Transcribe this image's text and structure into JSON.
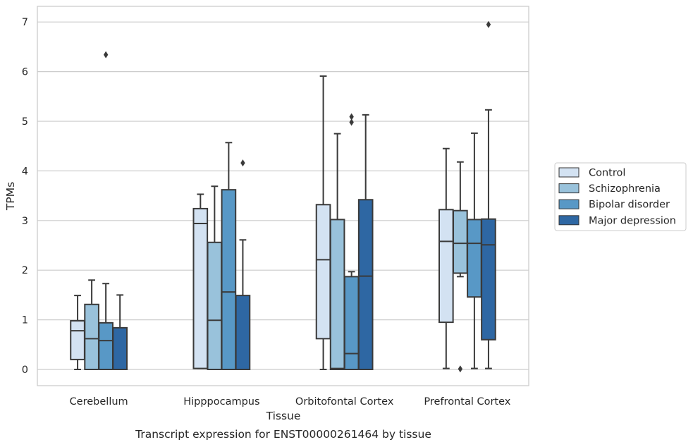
{
  "chart_data": {
    "type": "box",
    "caption": "Transcript expression for ENST00000261464 by tissue",
    "xlabel": "Tissue",
    "ylabel": "TPMs",
    "ylim": [
      -0.33,
      7.3
    ],
    "yticks": [
      0,
      1,
      2,
      3,
      4,
      5,
      6,
      7
    ],
    "grid": "horizontal",
    "legend_position": "right",
    "categories": [
      "Cerebellum",
      "Hipppocampus",
      "Orbitofontal Cortex",
      "Prefrontal Cortex"
    ],
    "series": [
      {
        "name": "Control",
        "color": "#d3e2f2",
        "boxes": [
          {
            "whisker_low": 0.0,
            "q1": 0.2,
            "median": 0.78,
            "q3": 0.98,
            "whisker_high": 1.49,
            "outliers": []
          },
          {
            "whisker_low": 0.02,
            "q1": 0.02,
            "median": 2.94,
            "q3": 3.24,
            "whisker_high": 3.53,
            "outliers": []
          },
          {
            "whisker_low": 0.0,
            "q1": 0.62,
            "median": 2.21,
            "q3": 3.32,
            "whisker_high": 5.91,
            "outliers": []
          },
          {
            "whisker_low": 0.02,
            "q1": 0.95,
            "median": 2.58,
            "q3": 3.22,
            "whisker_high": 4.45,
            "outliers": []
          }
        ]
      },
      {
        "name": "Schizophrenia",
        "color": "#99c2db",
        "boxes": [
          {
            "whisker_low": 0.0,
            "q1": 0.0,
            "median": 0.62,
            "q3": 1.31,
            "whisker_high": 1.8,
            "outliers": []
          },
          {
            "whisker_low": 0.0,
            "q1": 0.0,
            "median": 0.99,
            "q3": 2.56,
            "whisker_high": 3.69,
            "outliers": []
          },
          {
            "whisker_low": 0.0,
            "q1": 0.0,
            "median": 0.02,
            "q3": 3.02,
            "whisker_high": 4.75,
            "outliers": []
          },
          {
            "whisker_low": 1.87,
            "q1": 1.94,
            "median": 2.54,
            "q3": 3.2,
            "whisker_high": 4.18,
            "outliers": [
              0.01
            ]
          }
        ]
      },
      {
        "name": "Bipolar disorder",
        "color": "#5898c6",
        "boxes": [
          {
            "whisker_low": 0.0,
            "q1": 0.0,
            "median": 0.58,
            "q3": 0.94,
            "whisker_high": 1.73,
            "outliers": [
              6.34
            ]
          },
          {
            "whisker_low": 0.0,
            "q1": 0.0,
            "median": 1.56,
            "q3": 3.62,
            "whisker_high": 4.57,
            "outliers": []
          },
          {
            "whisker_low": 0.0,
            "q1": 0.0,
            "median": 0.32,
            "q3": 1.87,
            "whisker_high": 1.97,
            "outliers": [
              4.98,
              5.09
            ]
          },
          {
            "whisker_low": 0.02,
            "q1": 1.46,
            "median": 2.54,
            "q3": 3.02,
            "whisker_high": 4.76,
            "outliers": []
          }
        ]
      },
      {
        "name": "Major depression",
        "color": "#2e67a3",
        "boxes": [
          {
            "whisker_low": 0.0,
            "q1": 0.0,
            "median": 0.0,
            "q3": 0.84,
            "whisker_high": 1.5,
            "outliers": []
          },
          {
            "whisker_low": 0.0,
            "q1": 0.0,
            "median": 0.0,
            "q3": 1.49,
            "whisker_high": 2.61,
            "outliers": [
              4.16
            ]
          },
          {
            "whisker_low": 0.0,
            "q1": 0.0,
            "median": 1.88,
            "q3": 3.42,
            "whisker_high": 5.13,
            "outliers": []
          },
          {
            "whisker_low": 0.02,
            "q1": 0.6,
            "median": 2.51,
            "q3": 3.03,
            "whisker_high": 5.23,
            "outliers": [
              6.95
            ]
          }
        ]
      }
    ]
  }
}
